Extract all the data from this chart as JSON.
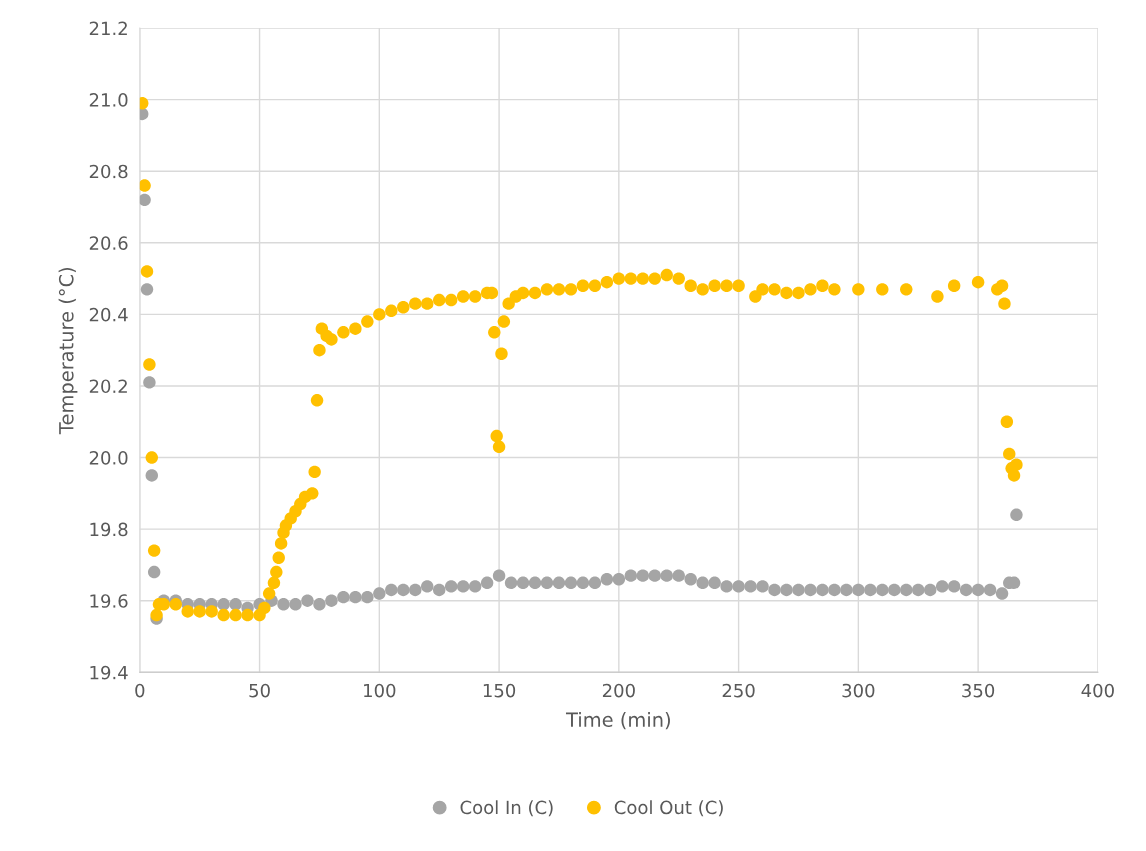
{
  "chart_data": {
    "type": "scatter",
    "xlabel": "Time (min)",
    "ylabel": "Temperature (°C)",
    "xlim": [
      0,
      400
    ],
    "xticks": [
      0,
      50,
      100,
      150,
      200,
      250,
      300,
      350,
      400
    ],
    "ylim": [
      19.4,
      21.2
    ],
    "yticks": [
      {
        "value": 19.4,
        "label": "19.4"
      },
      {
        "value": 19.6,
        "label": "19.6"
      },
      {
        "value": 19.8,
        "label": "19.8"
      },
      {
        "value": 20.0,
        "label": "20.0"
      },
      {
        "value": 20.2,
        "label": "20.2"
      },
      {
        "value": 20.4,
        "label": "20.4"
      },
      {
        "value": 20.6,
        "label": "20.6"
      },
      {
        "value": 20.8,
        "label": "20.8"
      },
      {
        "value": 21.0,
        "label": "21.0"
      },
      {
        "value": 21.2,
        "label": "21.2"
      }
    ],
    "grid": true,
    "legend": "bottom",
    "marker": "circle",
    "series": [
      {
        "name": "Cool In (C)",
        "color": "#a5a5a5",
        "x": [
          1,
          2,
          3,
          4,
          5,
          6,
          7,
          8,
          10,
          15,
          20,
          25,
          30,
          35,
          40,
          45,
          50,
          55,
          60,
          65,
          70,
          75,
          80,
          85,
          90,
          95,
          100,
          105,
          110,
          115,
          120,
          125,
          130,
          135,
          140,
          145,
          150,
          155,
          160,
          165,
          170,
          175,
          180,
          185,
          190,
          195,
          200,
          205,
          210,
          215,
          220,
          225,
          230,
          235,
          240,
          245,
          250,
          255,
          260,
          265,
          270,
          275,
          280,
          285,
          290,
          295,
          300,
          305,
          310,
          315,
          320,
          325,
          330,
          335,
          340,
          345,
          350,
          355,
          360,
          363,
          365,
          366
        ],
        "values": [
          20.96,
          20.72,
          20.47,
          20.21,
          19.95,
          19.68,
          19.55,
          null,
          19.6,
          19.6,
          19.59,
          19.59,
          19.59,
          19.59,
          19.59,
          19.58,
          19.59,
          19.6,
          19.59,
          19.59,
          19.6,
          19.59,
          19.6,
          19.61,
          19.61,
          19.61,
          19.62,
          19.63,
          19.63,
          19.63,
          19.64,
          19.63,
          19.64,
          19.64,
          19.64,
          19.65,
          19.67,
          19.65,
          19.65,
          19.65,
          19.65,
          19.65,
          19.65,
          19.65,
          19.65,
          19.66,
          19.66,
          19.67,
          19.67,
          19.67,
          19.67,
          19.67,
          19.66,
          19.65,
          19.65,
          19.64,
          19.64,
          19.64,
          19.64,
          19.63,
          19.63,
          19.63,
          19.63,
          19.63,
          19.63,
          19.63,
          19.63,
          19.63,
          19.63,
          19.63,
          19.63,
          19.63,
          19.63,
          19.64,
          19.64,
          19.63,
          19.63,
          19.63,
          19.62,
          19.65,
          19.65,
          19.84
        ]
      },
      {
        "name": "Cool Out (C)",
        "color": "#ffc000",
        "x": [
          1,
          2,
          3,
          4,
          5,
          6,
          7,
          8,
          10,
          15,
          20,
          25,
          30,
          35,
          40,
          45,
          50,
          52,
          54,
          56,
          57,
          58,
          59,
          60,
          61,
          63,
          65,
          67,
          69,
          72,
          73,
          74,
          75,
          76,
          78,
          80,
          85,
          90,
          95,
          100,
          105,
          110,
          115,
          120,
          125,
          130,
          135,
          140,
          145,
          147,
          148,
          149,
          150,
          151,
          152,
          154,
          157,
          160,
          165,
          170,
          175,
          180,
          185,
          190,
          195,
          200,
          205,
          210,
          215,
          220,
          225,
          230,
          235,
          240,
          245,
          250,
          257,
          260,
          265,
          270,
          275,
          280,
          285,
          290,
          300,
          310,
          320,
          333,
          340,
          350,
          358,
          360,
          361,
          362,
          363,
          364,
          365,
          366
        ],
        "values": [
          20.99,
          20.76,
          20.52,
          20.26,
          20.0,
          19.74,
          19.56,
          19.59,
          19.59,
          19.59,
          19.57,
          19.57,
          19.57,
          19.56,
          19.56,
          19.56,
          19.56,
          19.58,
          19.62,
          19.65,
          19.68,
          19.72,
          19.76,
          19.79,
          19.81,
          19.83,
          19.85,
          19.87,
          19.89,
          19.9,
          19.96,
          20.16,
          20.3,
          20.36,
          20.34,
          20.33,
          20.35,
          20.36,
          20.38,
          20.4,
          20.41,
          20.42,
          20.43,
          20.43,
          20.44,
          20.44,
          20.45,
          20.45,
          20.46,
          20.46,
          20.35,
          20.06,
          20.03,
          20.29,
          20.38,
          20.43,
          20.45,
          20.46,
          20.46,
          20.47,
          20.47,
          20.47,
          20.48,
          20.48,
          20.49,
          20.5,
          20.5,
          20.5,
          20.5,
          20.51,
          20.5,
          20.48,
          20.47,
          20.48,
          20.48,
          20.48,
          20.45,
          20.47,
          20.47,
          20.46,
          20.46,
          20.47,
          20.48,
          20.47,
          20.47,
          20.47,
          20.47,
          20.45,
          20.48,
          20.49,
          20.47,
          20.48,
          20.43,
          20.1,
          20.01,
          19.97,
          19.95,
          19.98
        ]
      }
    ]
  }
}
